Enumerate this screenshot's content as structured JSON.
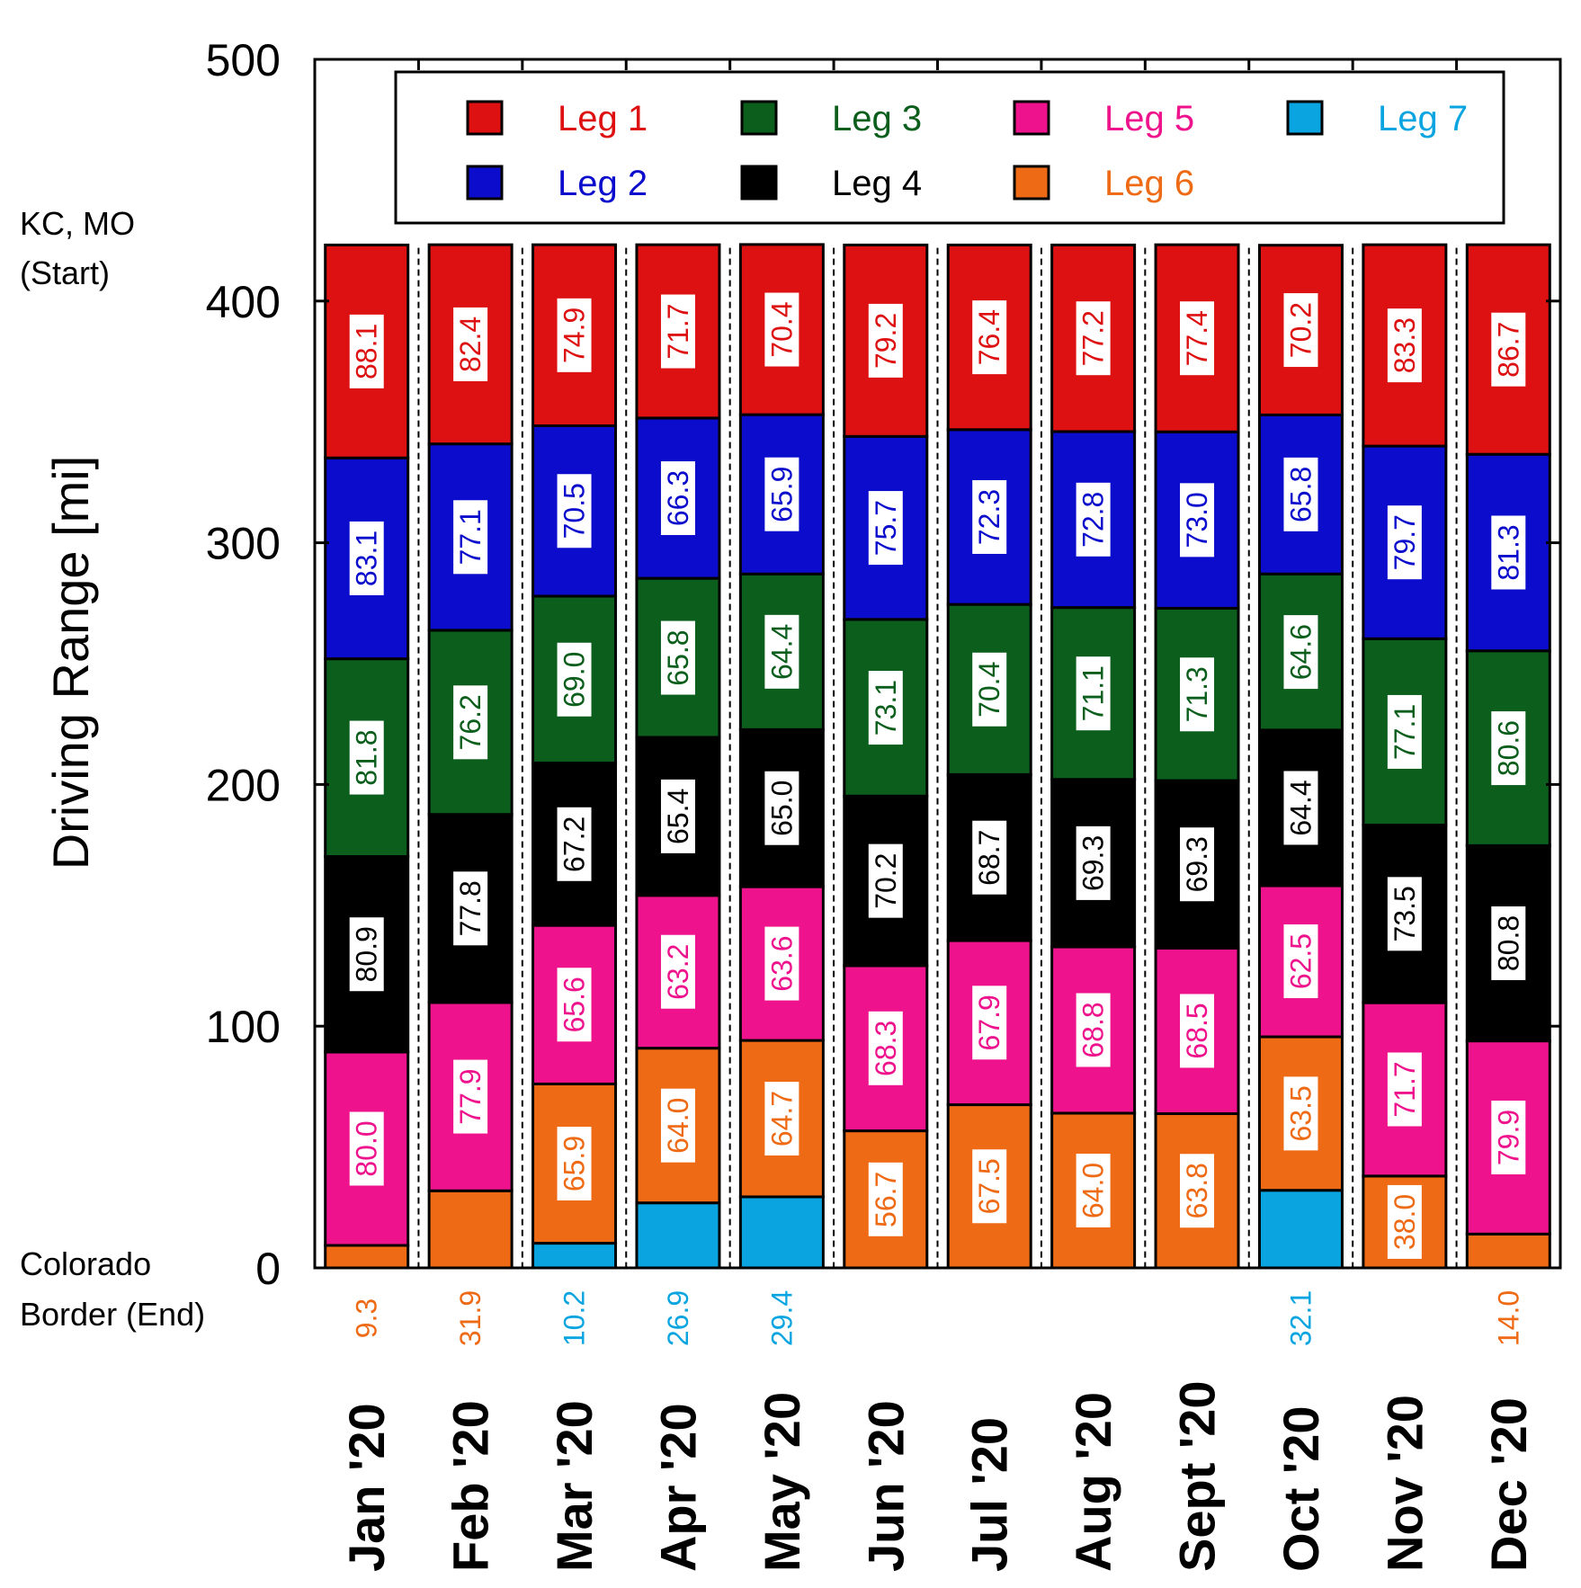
{
  "chart_data": {
    "type": "stacked-bar",
    "title": "",
    "xlabel": "",
    "ylabel": "Driving Range [mi]",
    "ylim": [
      0,
      500
    ],
    "yticks": [
      "0",
      "100",
      "200",
      "300",
      "400",
      "500"
    ],
    "top_end_label": [
      "KC, MO",
      "(Start)"
    ],
    "bottom_end_label": [
      "Colorado",
      "Border (End)"
    ],
    "categories": [
      "Jan '20",
      "Feb '20",
      "Mar '20",
      "Apr '20",
      "May '20",
      "Jun '20",
      "Jul '20",
      "Aug '20",
      "Sept '20",
      "Oct '20",
      "Nov '20",
      "Dec '20"
    ],
    "series": [
      {
        "name": "Leg 7",
        "color": "#0aa5e0",
        "values": [
          null,
          null,
          10.2,
          26.9,
          29.4,
          null,
          null,
          null,
          null,
          32.1,
          null,
          null
        ],
        "labels": [
          null,
          null,
          "10.2",
          "26.9",
          "29.4",
          null,
          null,
          null,
          null,
          "32.1",
          null,
          null
        ]
      },
      {
        "name": "Leg 6",
        "color": "#ee6a14",
        "values": [
          9.3,
          31.9,
          65.9,
          64.0,
          64.7,
          56.7,
          67.5,
          64.0,
          63.8,
          63.5,
          38.0,
          14.0
        ],
        "labels": [
          "9.3",
          "31.9",
          "65.9",
          "64.0",
          "64.7",
          "56.7",
          "67.5",
          "64.0",
          "63.8",
          "63.5",
          "38.0",
          "14.0"
        ]
      },
      {
        "name": "Leg 5",
        "color": "#ee138c",
        "values": [
          80.0,
          77.9,
          65.6,
          63.2,
          63.6,
          68.3,
          67.9,
          68.8,
          68.5,
          62.5,
          71.7,
          79.9
        ],
        "labels": [
          "80.0",
          "77.9",
          "65.6",
          "63.2",
          "63.6",
          "68.3",
          "67.9",
          "68.8",
          "68.5",
          "62.5",
          "71.7",
          "79.9"
        ]
      },
      {
        "name": "Leg 4",
        "color": "#000000",
        "values": [
          80.9,
          77.8,
          67.2,
          65.4,
          65.0,
          70.2,
          68.7,
          69.3,
          69.3,
          64.4,
          73.5,
          80.8
        ],
        "labels": [
          "80.9",
          "77.8",
          "67.2",
          "65.4",
          "65.0",
          "70.2",
          "68.7",
          "69.3",
          "69.3",
          "64.4",
          "73.5",
          "80.8"
        ]
      },
      {
        "name": "Leg 3",
        "color": "#0b5e1c",
        "values": [
          81.8,
          76.2,
          69.0,
          65.8,
          64.4,
          73.1,
          70.4,
          71.1,
          71.3,
          64.6,
          77.1,
          80.6
        ],
        "labels": [
          "81.8",
          "76.2",
          "69.0",
          "65.8",
          "64.4",
          "73.1",
          "70.4",
          "71.1",
          "71.3",
          "64.6",
          "77.1",
          "80.6"
        ]
      },
      {
        "name": "Leg 2",
        "color": "#0c0ccc",
        "values": [
          83.1,
          77.1,
          70.5,
          66.3,
          65.9,
          75.7,
          72.3,
          72.8,
          73.0,
          65.8,
          79.7,
          81.3
        ],
        "labels": [
          "83.1",
          "77.1",
          "70.5",
          "66.3",
          "65.9",
          "75.7",
          "72.3",
          "72.8",
          "73.0",
          "65.8",
          "79.7",
          "81.3"
        ]
      },
      {
        "name": "Leg 1",
        "color": "#dd1111",
        "values": [
          88.1,
          82.4,
          74.9,
          71.7,
          70.4,
          79.2,
          76.4,
          77.2,
          77.4,
          70.2,
          83.3,
          86.7
        ],
        "labels": [
          "88.1",
          "82.4",
          "74.9",
          "71.7",
          "70.4",
          "79.2",
          "76.4",
          "77.2",
          "77.4",
          "70.2",
          "83.3",
          "86.7"
        ]
      }
    ],
    "legend": {
      "placement": "top",
      "entries": [
        {
          "label": "Leg 1",
          "color": "#dd1111"
        },
        {
          "label": "Leg 2",
          "color": "#0c0ccc"
        },
        {
          "label": "Leg 3",
          "color": "#0b5e1c"
        },
        {
          "label": "Leg 4",
          "color": "#000000"
        },
        {
          "label": "Leg 5",
          "color": "#ee138c"
        },
        {
          "label": "Leg 6",
          "color": "#ee6a14"
        },
        {
          "label": "Leg 7",
          "color": "#0aa5e0"
        }
      ]
    }
  }
}
